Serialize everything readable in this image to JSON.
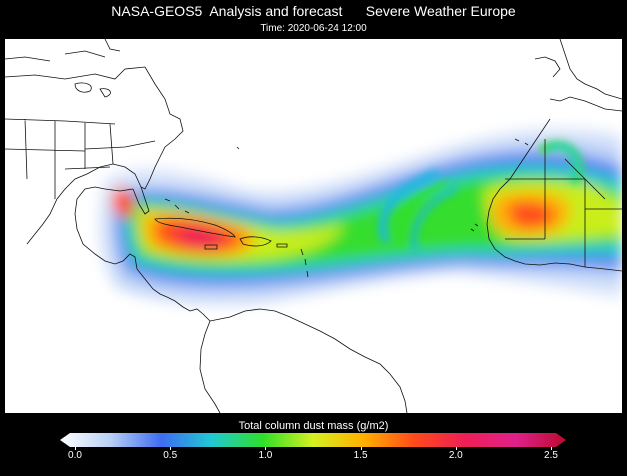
{
  "header": {
    "title": "NASA-GEOS5  Analysis and forecast      Severe Weather Europe",
    "time": "Time: 2020-06-24 12:00"
  },
  "colorbar": {
    "label": "Total column dust mass (g/m2)",
    "ticks": [
      "0.0",
      "0.5",
      "1.0",
      "1.5",
      "2.0",
      "2.5"
    ],
    "colors": [
      "#ffffff",
      "#b8d0f5",
      "#3f6cf0",
      "#21c8d2",
      "#2ee02b",
      "#d6f020",
      "#ffb000",
      "#ff4a1a",
      "#ee1f56",
      "#e0208a",
      "#bb0a30"
    ]
  },
  "map": {
    "region": "North Atlantic, Caribbean, West Africa",
    "field": "dust plume"
  }
}
